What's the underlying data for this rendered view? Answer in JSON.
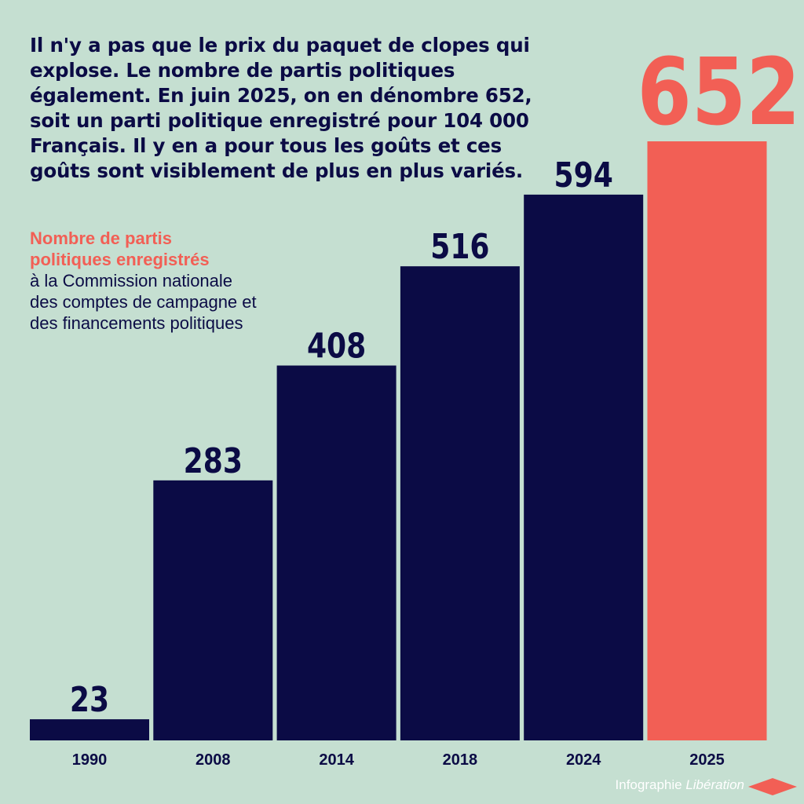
{
  "intro": {
    "text": "Il n'y a pas que le prix du paquet de clopes qui explose. Le nombre de partis politiques également. En juin 2025, on en dénombre 652, soit un parti politique enregistré pour 104 000 Français. Il y en a pour tous les goûts et ces goûts sont visiblement de plus en plus variés."
  },
  "legend": {
    "highlight": "Nombre de partis politiques enregistrés",
    "rest": "à la Commission nationale des comptes de campagne et des financements politiques"
  },
  "credit": {
    "prefix": "Infographie",
    "brand": "Libération"
  },
  "colors": {
    "background": "#c5dfd1",
    "bar": "#0b0b45",
    "highlight": "#f25f55",
    "text": "#0b0b45"
  },
  "chart_data": {
    "type": "bar",
    "categories": [
      "1990",
      "2008",
      "2014",
      "2018",
      "2024",
      "2025"
    ],
    "values": [
      23,
      283,
      408,
      516,
      594,
      652
    ],
    "data_labels": [
      "23",
      "283",
      "408",
      "516",
      "594",
      "652"
    ],
    "highlighted_category": "2025",
    "title": "",
    "xlabel": "",
    "ylabel": "",
    "ylim": [
      0,
      652
    ],
    "grid": false,
    "legend": "none"
  }
}
